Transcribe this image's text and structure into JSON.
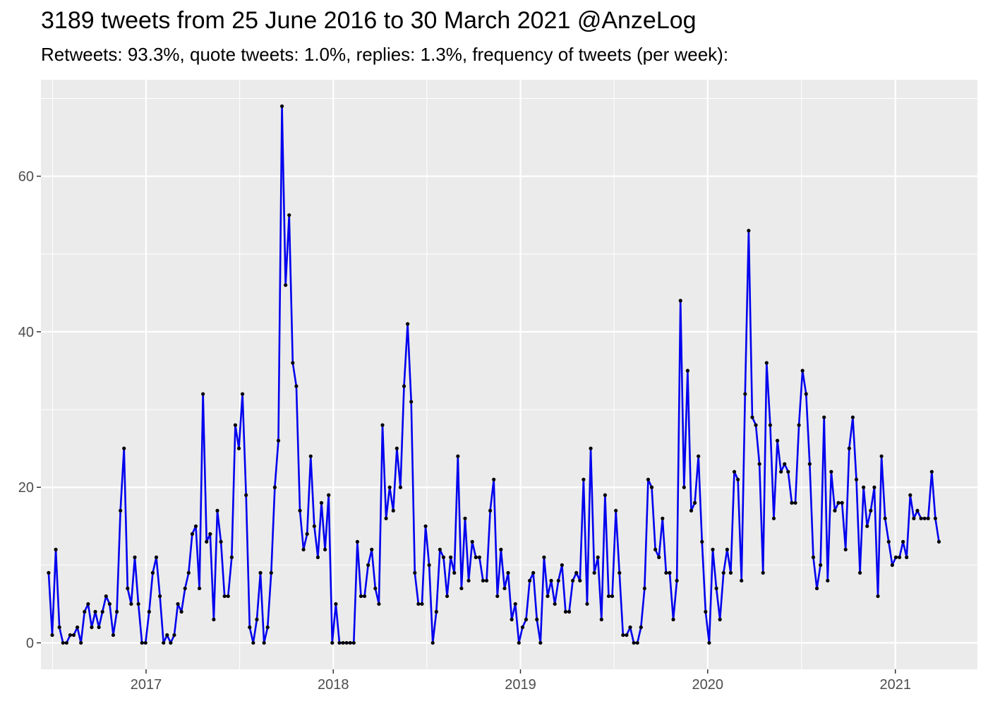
{
  "chart_data": {
    "type": "line",
    "title": "3189 tweets from 25 June 2016 to 30 March 2021 @AnzeLog",
    "subtitle": "Retweets: 93.3%, quote tweets: 1.0%, replies: 1.3%, frequency of tweets (per week):",
    "xlabel": "",
    "ylabel": "",
    "x_axis_type": "date",
    "xlim": [
      "2016-06-10",
      "2021-06-10"
    ],
    "ylim": [
      -3.4,
      72.4
    ],
    "x_ticks": [
      {
        "date": "2017-01-01",
        "label": "2017"
      },
      {
        "date": "2018-01-01",
        "label": "2018"
      },
      {
        "date": "2019-01-01",
        "label": "2019"
      },
      {
        "date": "2020-01-01",
        "label": "2020"
      },
      {
        "date": "2021-01-01",
        "label": "2021"
      }
    ],
    "y_ticks": [
      0,
      20,
      40,
      60
    ],
    "grid": true,
    "background": "#ebebeb",
    "line_color": "#0000ee",
    "point_color": "#000000",
    "series": [
      {
        "x": [
          "2016-06-25",
          "2016-07-02",
          "2016-07-09",
          "2016-07-16",
          "2016-07-23",
          "2016-07-30",
          "2016-08-06",
          "2016-08-13",
          "2016-08-20",
          "2016-08-27",
          "2016-09-03",
          "2016-09-10",
          "2016-09-17",
          "2016-09-24",
          "2016-10-01",
          "2016-10-08",
          "2016-10-15",
          "2016-10-22",
          "2016-10-29",
          "2016-11-05",
          "2016-11-12",
          "2016-11-19",
          "2016-11-26",
          "2016-12-03",
          "2016-12-10",
          "2016-12-17",
          "2016-12-24",
          "2016-12-31",
          "2017-01-07",
          "2017-01-14",
          "2017-01-21",
          "2017-01-28",
          "2017-02-04",
          "2017-02-11",
          "2017-02-18",
          "2017-02-25",
          "2017-03-04",
          "2017-03-11",
          "2017-03-18",
          "2017-03-25",
          "2017-04-01",
          "2017-04-08",
          "2017-04-15",
          "2017-04-22",
          "2017-04-29",
          "2017-05-06",
          "2017-05-13",
          "2017-05-20",
          "2017-05-27",
          "2017-06-03",
          "2017-06-10",
          "2017-06-17",
          "2017-06-24",
          "2017-07-01",
          "2017-07-08",
          "2017-07-15",
          "2017-07-22",
          "2017-07-29",
          "2017-08-05",
          "2017-08-12",
          "2017-08-19",
          "2017-08-26",
          "2017-09-02",
          "2017-09-09",
          "2017-09-16",
          "2017-09-23",
          "2017-09-30",
          "2017-10-07",
          "2017-10-14",
          "2017-10-21",
          "2017-10-28",
          "2017-11-04",
          "2017-11-11",
          "2017-11-18",
          "2017-11-25",
          "2017-12-02",
          "2017-12-09",
          "2017-12-16",
          "2017-12-23",
          "2017-12-30",
          "2018-01-06",
          "2018-01-13",
          "2018-01-20",
          "2018-01-27",
          "2018-02-03",
          "2018-02-10",
          "2018-02-17",
          "2018-02-24",
          "2018-03-03",
          "2018-03-10",
          "2018-03-17",
          "2018-03-24",
          "2018-03-31",
          "2018-04-07",
          "2018-04-14",
          "2018-04-21",
          "2018-04-28",
          "2018-05-05",
          "2018-05-12",
          "2018-05-19",
          "2018-05-26",
          "2018-06-02",
          "2018-06-09",
          "2018-06-16",
          "2018-06-23",
          "2018-06-30",
          "2018-07-07",
          "2018-07-14",
          "2018-07-21",
          "2018-07-28",
          "2018-08-04",
          "2018-08-11",
          "2018-08-18",
          "2018-08-25",
          "2018-09-01",
          "2018-09-08",
          "2018-09-15",
          "2018-09-22",
          "2018-09-29",
          "2018-10-06",
          "2018-10-13",
          "2018-10-20",
          "2018-10-27",
          "2018-11-03",
          "2018-11-10",
          "2018-11-17",
          "2018-11-24",
          "2018-12-01",
          "2018-12-08",
          "2018-12-15",
          "2018-12-22",
          "2018-12-29",
          "2019-01-05",
          "2019-01-12",
          "2019-01-19",
          "2019-01-26",
          "2019-02-02",
          "2019-02-09",
          "2019-02-16",
          "2019-02-23",
          "2019-03-02",
          "2019-03-09",
          "2019-03-16",
          "2019-03-23",
          "2019-03-30",
          "2019-04-06",
          "2019-04-13",
          "2019-04-20",
          "2019-04-27",
          "2019-05-04",
          "2019-05-11",
          "2019-05-18",
          "2019-05-25",
          "2019-06-01",
          "2019-06-08",
          "2019-06-15",
          "2019-06-22",
          "2019-06-29",
          "2019-07-06",
          "2019-07-13",
          "2019-07-20",
          "2019-07-27",
          "2019-08-03",
          "2019-08-10",
          "2019-08-17",
          "2019-08-24",
          "2019-08-31",
          "2019-09-07",
          "2019-09-14",
          "2019-09-21",
          "2019-09-28",
          "2019-10-05",
          "2019-10-12",
          "2019-10-19",
          "2019-10-26",
          "2019-11-02",
          "2019-11-09",
          "2019-11-16",
          "2019-11-23",
          "2019-11-30",
          "2019-12-07",
          "2019-12-14",
          "2019-12-21",
          "2019-12-28",
          "2020-01-04",
          "2020-01-11",
          "2020-01-18",
          "2020-01-25",
          "2020-02-01",
          "2020-02-08",
          "2020-02-15",
          "2020-02-22",
          "2020-02-29",
          "2020-03-07",
          "2020-03-14",
          "2020-03-21",
          "2020-03-28",
          "2020-04-04",
          "2020-04-11",
          "2020-04-18",
          "2020-04-25",
          "2020-05-02",
          "2020-05-09",
          "2020-05-16",
          "2020-05-23",
          "2020-05-30",
          "2020-06-06",
          "2020-06-13",
          "2020-06-20",
          "2020-06-27",
          "2020-07-04",
          "2020-07-11",
          "2020-07-18",
          "2020-07-25",
          "2020-08-01",
          "2020-08-08",
          "2020-08-15",
          "2020-08-22",
          "2020-08-29",
          "2020-09-05",
          "2020-09-12",
          "2020-09-19",
          "2020-09-26",
          "2020-10-03",
          "2020-10-10",
          "2020-10-17",
          "2020-10-24",
          "2020-10-31",
          "2020-11-07",
          "2020-11-14",
          "2020-11-21",
          "2020-11-28",
          "2020-12-05",
          "2020-12-12",
          "2020-12-19",
          "2020-12-26",
          "2021-01-02",
          "2021-01-09",
          "2021-01-16",
          "2021-01-23",
          "2021-01-30",
          "2021-02-06",
          "2021-02-13",
          "2021-02-20",
          "2021-02-27",
          "2021-03-06",
          "2021-03-13",
          "2021-03-20",
          "2021-03-27"
        ],
        "y": [
          9,
          1,
          12,
          2,
          0,
          0,
          1,
          1,
          2,
          0,
          4,
          5,
          2,
          4,
          2,
          4,
          6,
          5,
          1,
          4,
          17,
          25,
          7,
          5,
          11,
          5,
          0,
          0,
          4,
          9,
          11,
          6,
          0,
          1,
          0,
          1,
          5,
          4,
          7,
          9,
          14,
          15,
          7,
          32,
          13,
          14,
          3,
          17,
          13,
          6,
          6,
          11,
          28,
          25,
          32,
          19,
          2,
          0,
          3,
          9,
          0,
          2,
          9,
          20,
          26,
          69,
          46,
          55,
          36,
          33,
          17,
          12,
          14,
          24,
          15,
          11,
          18,
          12,
          19,
          0,
          5,
          0,
          0,
          0,
          0,
          0,
          13,
          6,
          6,
          10,
          12,
          7,
          5,
          28,
          16,
          20,
          17,
          25,
          20,
          33,
          41,
          31,
          9,
          5,
          5,
          15,
          10,
          0,
          4,
          12,
          11,
          6,
          11,
          9,
          24,
          7,
          16,
          8,
          13,
          11,
          11,
          8,
          8,
          17,
          21,
          6,
          12,
          7,
          9,
          3,
          5,
          0,
          2,
          3,
          8,
          9,
          3,
          0,
          11,
          6,
          8,
          5,
          8,
          10,
          4,
          4,
          8,
          9,
          8,
          21,
          5,
          25,
          9,
          11,
          3,
          19,
          6,
          6,
          17,
          9,
          1,
          1,
          2,
          0,
          0,
          2,
          7,
          21,
          20,
          12,
          11,
          16,
          9,
          9,
          3,
          8,
          44,
          20,
          35,
          17,
          18,
          24,
          13,
          4,
          0,
          12,
          7,
          3,
          9,
          12,
          9,
          22,
          21,
          8,
          32,
          53,
          29,
          28,
          23,
          9,
          36,
          28,
          16,
          26,
          22,
          23,
          22,
          18,
          18,
          28,
          35,
          32,
          23,
          11,
          7,
          10,
          29,
          8,
          22,
          17,
          18,
          18,
          12,
          25,
          29,
          21,
          9,
          20,
          15,
          17,
          20,
          6,
          24,
          16,
          13,
          10,
          11,
          11,
          13,
          11,
          19,
          16,
          17,
          16,
          16,
          16,
          22,
          16,
          13
        ]
      }
    ]
  }
}
